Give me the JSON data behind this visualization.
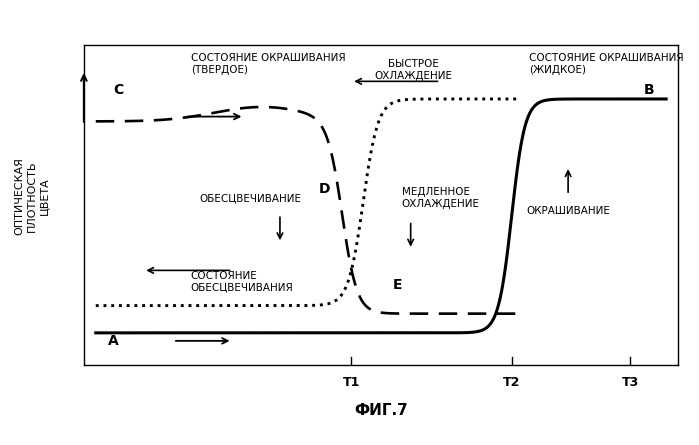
{
  "title": "ФИГ.7",
  "ylabel": "ОПТИЧЕСКАЯ\nПЛОТНОСТЬ\nЦВЕТА",
  "xlim": [
    0,
    10
  ],
  "ylim": [
    0,
    10
  ],
  "T1": 4.5,
  "T2": 7.2,
  "T3": 9.2,
  "y_high": 8.3,
  "y_low_solid": 1.0,
  "y_low_dashed": 1.6,
  "y_low_dotted": 1.85,
  "label_C": "C",
  "label_B": "B",
  "label_D": "D",
  "label_E": "E",
  "label_A": "A",
  "text_solid_state_left": "СОСТОЯНИЕ ОКРАШИВАНИЯ\n(ТВЕРДОЕ)",
  "text_solid_state_right": "СОСТОЯНИЕ ОКРАШИВАНИЯ\n(ЖИДКОЕ)",
  "text_fast_cooling": "БЫСТРОЕ\nОХЛАЖДЕНИЕ",
  "text_decolor": "ОБЕСЦВЕЧИВАНИЕ",
  "text_decolor_state": "СОСТОЯНИЕ\nОБЕСЦВЕЧИВАНИЯ",
  "text_slow_cooling": "МЕДЛЕННОЕ\nОХЛАЖДЕНИЕ",
  "text_coloring": "ОКРАШИВАНИЕ",
  "background_color": "#ffffff",
  "line_color": "#000000"
}
